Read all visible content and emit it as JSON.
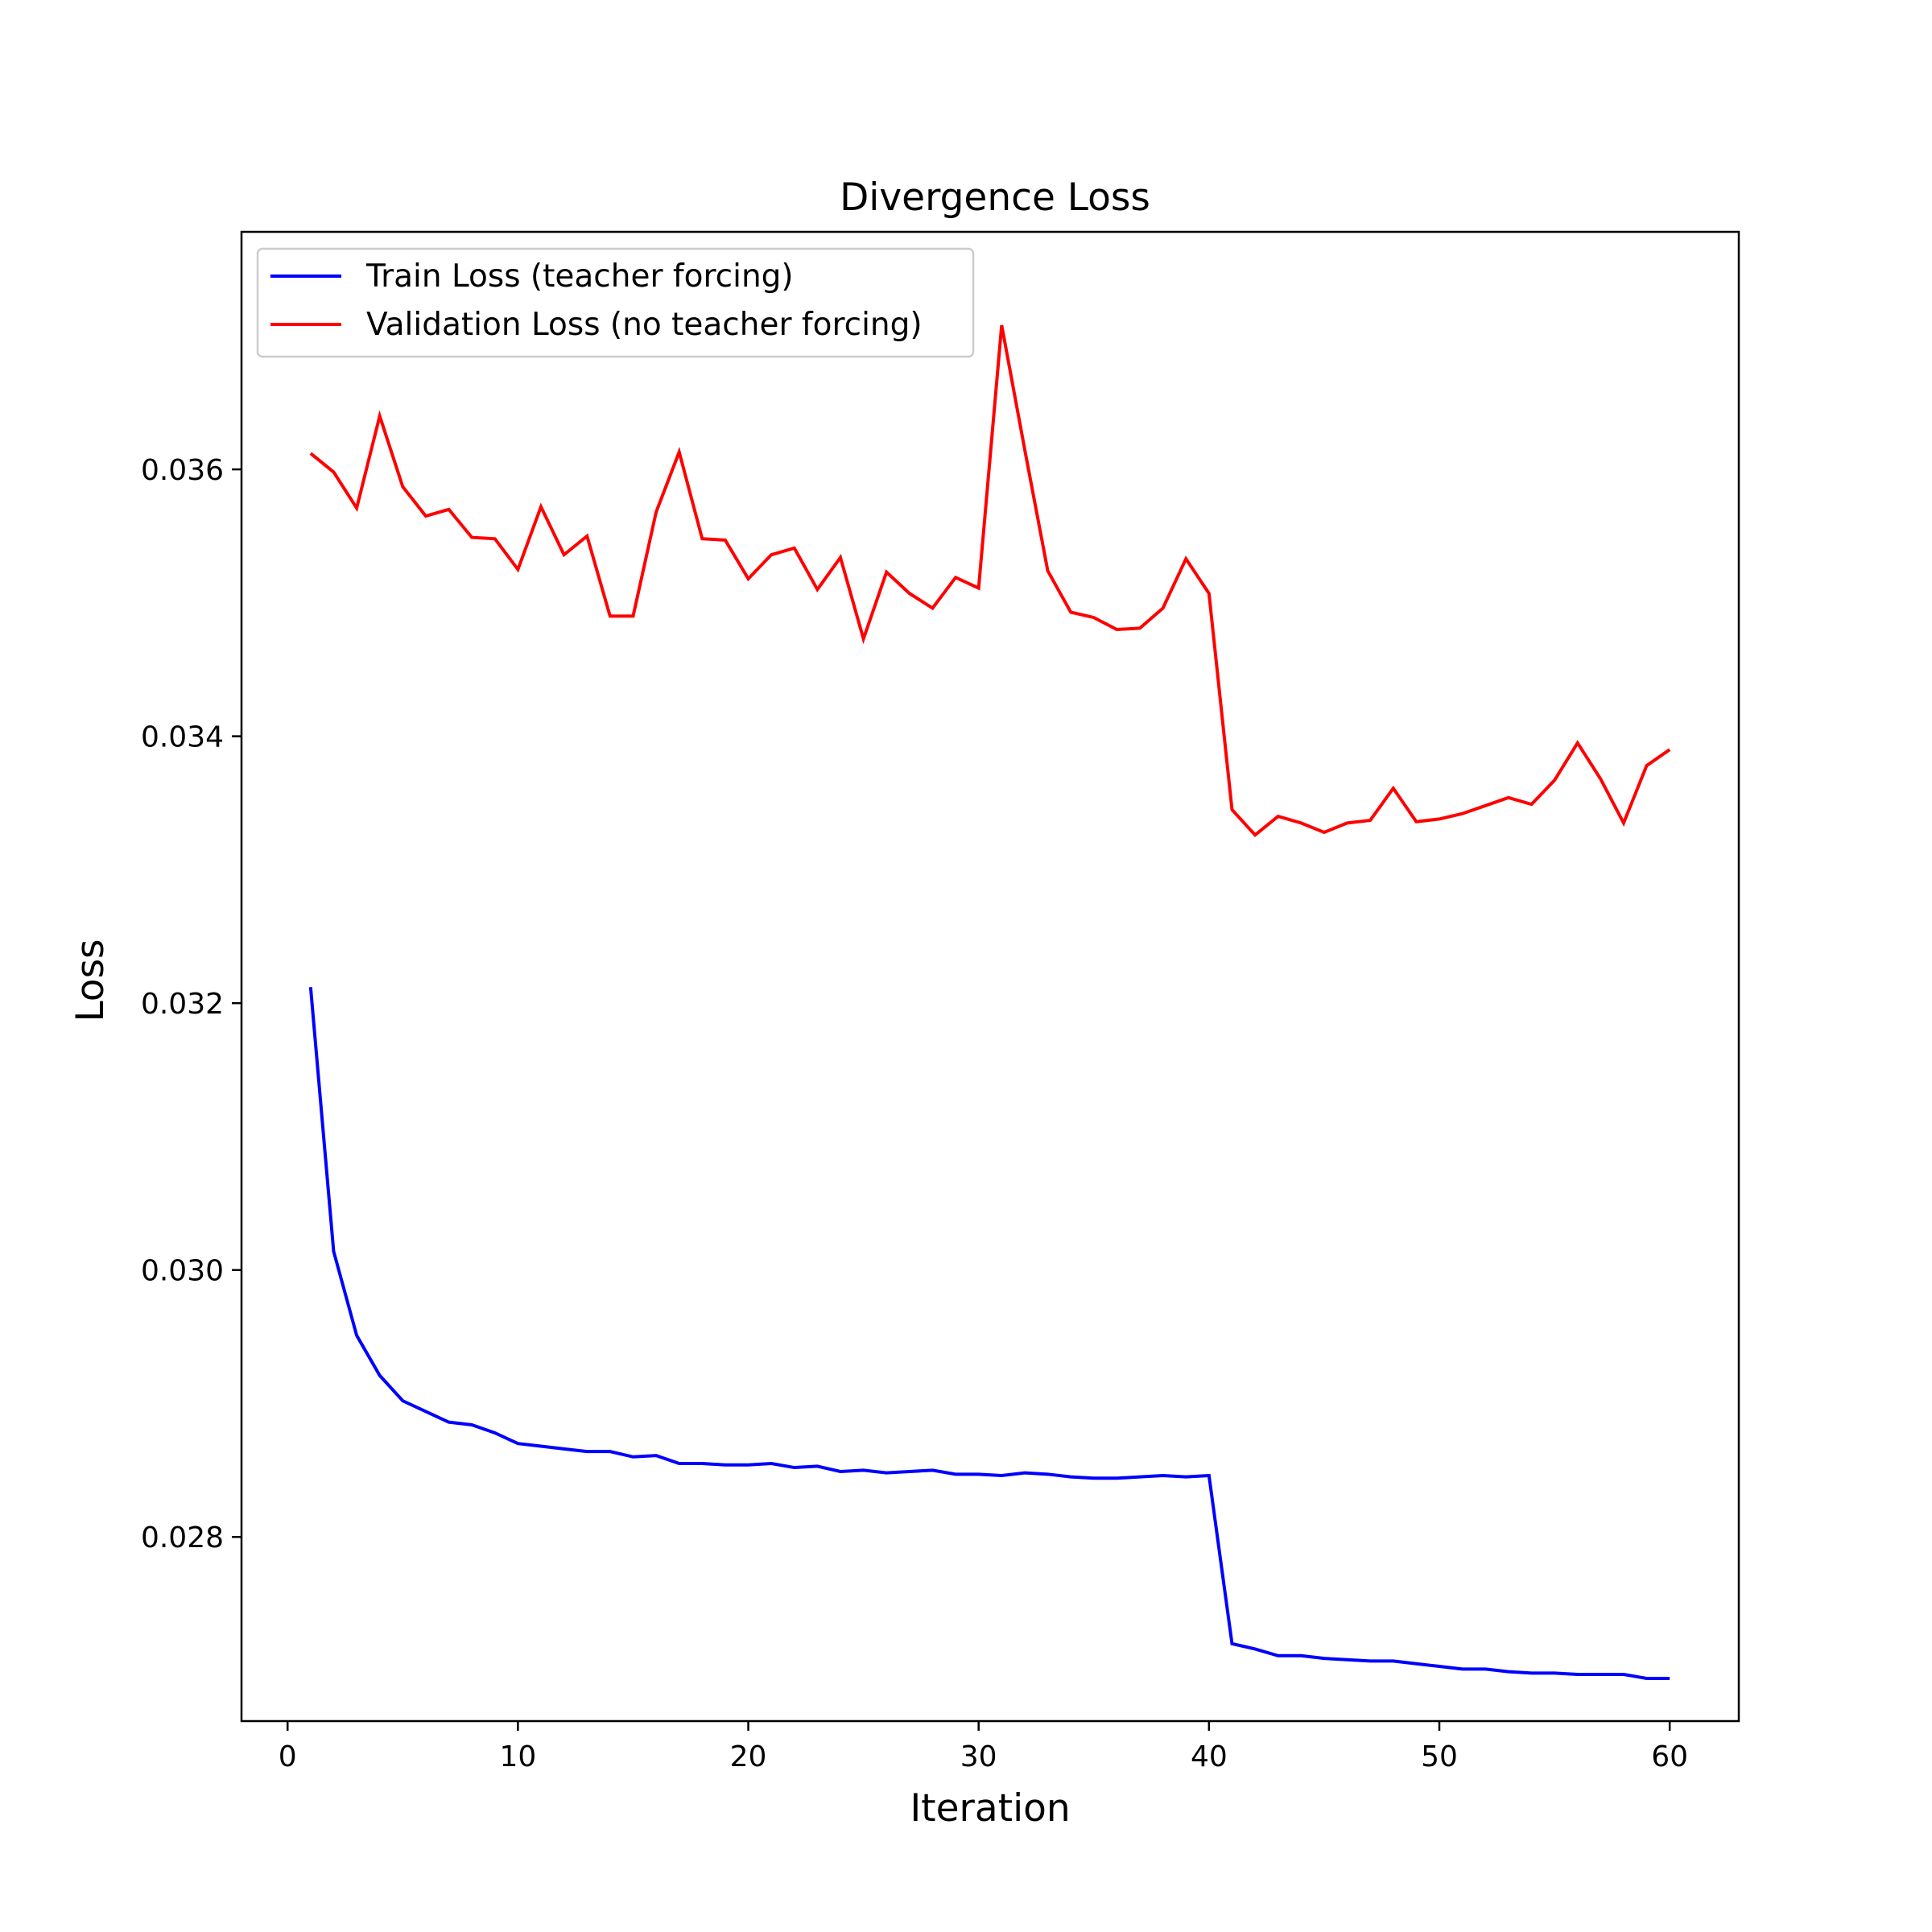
{
  "chart_data": {
    "type": "line",
    "title": "Divergence Loss",
    "xlabel": "Iteration",
    "ylabel": "Loss",
    "xlim": [
      -2,
      63
    ],
    "ylim": [
      0.02662,
      0.03778
    ],
    "xticks": [
      0,
      10,
      20,
      30,
      40,
      50,
      60
    ],
    "xtick_labels": [
      "0",
      "10",
      "20",
      "30",
      "40",
      "50",
      "60"
    ],
    "yticks": [
      0.028,
      0.03,
      0.032,
      0.034,
      0.036
    ],
    "ytick_labels": [
      "0.028",
      "0.030",
      "0.032",
      "0.034",
      "0.036"
    ],
    "grid": false,
    "legend_position": "top-left",
    "x": [
      1,
      2,
      3,
      4,
      5,
      6,
      7,
      8,
      9,
      10,
      11,
      12,
      13,
      14,
      15,
      16,
      17,
      18,
      19,
      20,
      21,
      22,
      23,
      24,
      25,
      26,
      27,
      28,
      29,
      30,
      31,
      32,
      33,
      34,
      35,
      36,
      37,
      38,
      39,
      40,
      41,
      42,
      43,
      44,
      45,
      46,
      47,
      48,
      49,
      50,
      51,
      52,
      53,
      54,
      55,
      56,
      57,
      58,
      59,
      60
    ],
    "series": [
      {
        "name": "Train Loss (teacher forcing)",
        "color": "#0000ff",
        "values": [
          0.03212,
          0.03014,
          0.02951,
          0.02921,
          0.02902,
          0.02894,
          0.02886,
          0.02884,
          0.02878,
          0.0287,
          0.02868,
          0.02866,
          0.02864,
          0.02864,
          0.0286,
          0.02861,
          0.02855,
          0.02855,
          0.02854,
          0.02854,
          0.02855,
          0.02852,
          0.02853,
          0.02849,
          0.0285,
          0.02848,
          0.02849,
          0.0285,
          0.02847,
          0.02847,
          0.02846,
          0.02848,
          0.02847,
          0.02845,
          0.02844,
          0.02844,
          0.02845,
          0.02846,
          0.02845,
          0.02846,
          0.0272,
          0.02716,
          0.02711,
          0.02711,
          0.02709,
          0.02708,
          0.02707,
          0.02707,
          0.02705,
          0.02703,
          0.02701,
          0.02701,
          0.02699,
          0.02698,
          0.02698,
          0.02697,
          0.02697,
          0.02697,
          0.02694,
          0.02694
        ]
      },
      {
        "name": "Validation Loss (no teacher forcing)",
        "color": "#ff0000",
        "values": [
          0.03612,
          0.03598,
          0.03571,
          0.0364,
          0.03587,
          0.03565,
          0.0357,
          0.03549,
          0.03548,
          0.03525,
          0.03572,
          0.03536,
          0.0355,
          0.0349,
          0.0349,
          0.03568,
          0.03613,
          0.03548,
          0.03547,
          0.03518,
          0.03536,
          0.03541,
          0.0351,
          0.03534,
          0.03473,
          0.03523,
          0.03507,
          0.03496,
          0.03519,
          0.03511,
          0.03708,
          0.03615,
          0.03524,
          0.03493,
          0.03489,
          0.0348,
          0.03481,
          0.03496,
          0.03533,
          0.03507,
          0.03345,
          0.03326,
          0.0334,
          0.03335,
          0.03328,
          0.03335,
          0.03337,
          0.03361,
          0.03336,
          0.03338,
          0.03342,
          0.03348,
          0.03354,
          0.03349,
          0.03367,
          0.03395,
          0.03368,
          0.03335,
          0.03378,
          0.0339
        ]
      }
    ]
  }
}
